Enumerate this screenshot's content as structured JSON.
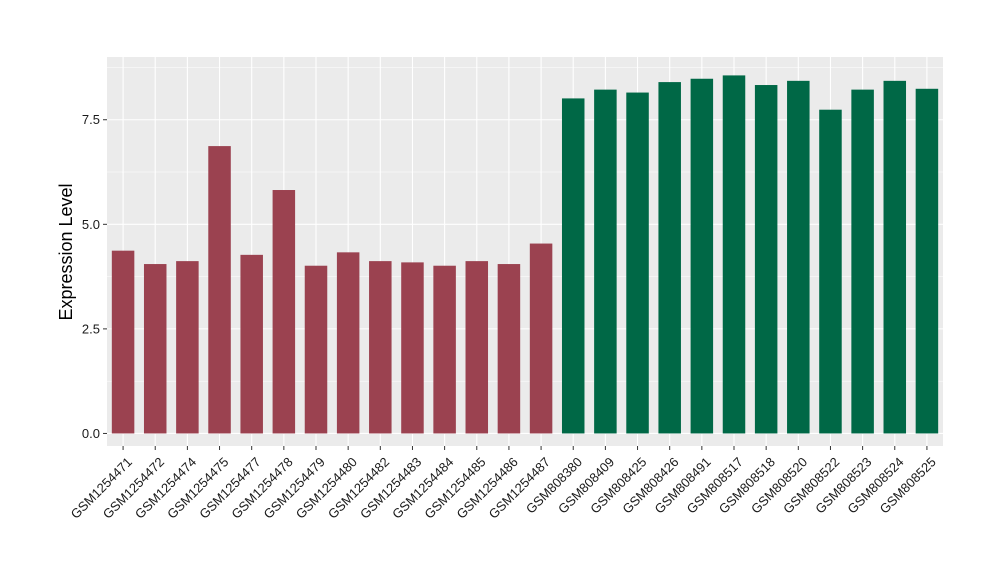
{
  "chart_data": {
    "type": "bar",
    "title": "",
    "xlabel": "",
    "ylabel": "Expression Level",
    "ylim": [
      -0.3,
      9.0
    ],
    "yticks": [
      0.0,
      2.5,
      5.0,
      7.5
    ],
    "ytick_labels": [
      "0.0",
      "2.5",
      "5.0",
      "7.5"
    ],
    "grid": true,
    "legend": "none",
    "categories": [
      "GSM1254471",
      "GSM1254472",
      "GSM1254474",
      "GSM1254475",
      "GSM1254477",
      "GSM1254478",
      "GSM1254479",
      "GSM1254480",
      "GSM1254482",
      "GSM1254483",
      "GSM1254484",
      "GSM1254485",
      "GSM1254486",
      "GSM1254487",
      "GSM808380",
      "GSM808409",
      "GSM808425",
      "GSM808426",
      "GSM808491",
      "GSM808517",
      "GSM808518",
      "GSM808520",
      "GSM808522",
      "GSM808523",
      "GSM808524",
      "GSM808525"
    ],
    "values": [
      4.37,
      4.05,
      4.12,
      6.87,
      4.27,
      5.82,
      4.01,
      4.33,
      4.12,
      4.09,
      4.01,
      4.12,
      4.05,
      4.54,
      8.01,
      8.22,
      8.15,
      8.4,
      8.48,
      8.56,
      8.33,
      8.43,
      7.74,
      8.22,
      8.43,
      8.24
    ],
    "bar_groups": [
      0,
      0,
      0,
      0,
      0,
      0,
      0,
      0,
      0,
      0,
      0,
      0,
      0,
      0,
      1,
      1,
      1,
      1,
      1,
      1,
      1,
      1,
      1,
      1,
      1,
      1
    ],
    "colors": {
      "group_0": "#9b4250",
      "group_1": "#006846",
      "panel_background": "#ebebeb",
      "grid_line": "#ffffff"
    }
  }
}
